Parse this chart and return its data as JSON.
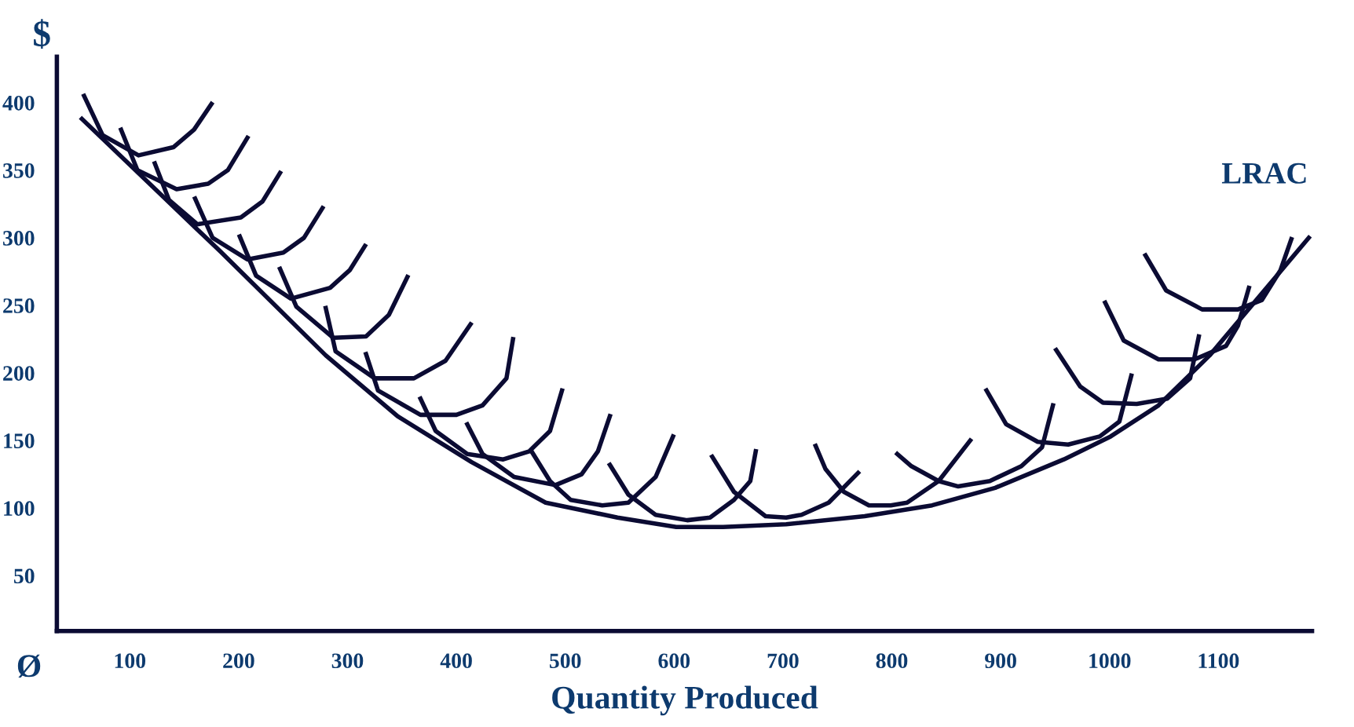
{
  "chart_data": {
    "type": "line",
    "xlabel": "Quantity Produced",
    "ylabel": "$",
    "xlim": [
      33,
      1186
    ],
    "ylim": [
      9,
      434
    ],
    "xticks": [
      100,
      200,
      300,
      400,
      500,
      600,
      700,
      800,
      900,
      1000,
      1100
    ],
    "yticks": [
      50,
      100,
      150,
      200,
      250,
      300,
      350,
      400
    ],
    "grid": false,
    "legend": false,
    "marker": "none",
    "line_style": "solid",
    "annotations": [
      "Ø"
    ],
    "series": [
      {
        "name": "LRAC",
        "color": "#0b0b33",
        "x": [
          56,
          183,
          280,
          346,
          414,
          482,
          548,
          602,
          645,
          703,
          775,
          837,
          895,
          958,
          1001,
          1045,
          1092,
          1183
        ],
        "values": [
          388,
          290,
          213,
          168,
          134,
          104,
          93,
          86,
          86,
          88,
          94,
          102,
          115,
          136,
          153,
          176,
          213,
          300
        ]
      },
      {
        "color": "#0b0b33",
        "x": [
          58,
          75,
          108,
          140,
          159,
          175
        ],
        "values": [
          405,
          376,
          361,
          367,
          380,
          399
        ]
      },
      {
        "color": "#0b0b33",
        "x": [
          92,
          107,
          143,
          172,
          190,
          208
        ],
        "values": [
          380,
          350,
          336,
          340,
          350,
          374
        ]
      },
      {
        "color": "#0b0b33",
        "x": [
          123,
          136,
          162,
          202,
          222,
          238
        ],
        "values": [
          355,
          328,
          310,
          315,
          327,
          348
        ]
      },
      {
        "color": "#0b0b33",
        "x": [
          160,
          176,
          208,
          241,
          260,
          277
        ],
        "values": [
          329,
          300,
          284,
          289,
          300,
          322
        ]
      },
      {
        "color": "#0b0b33",
        "x": [
          201,
          216,
          248,
          284,
          302,
          316
        ],
        "values": [
          301,
          272,
          255,
          263,
          276,
          294
        ]
      },
      {
        "color": "#0b0b33",
        "x": [
          238,
          253,
          287,
          317,
          338,
          355
        ],
        "values": [
          277,
          249,
          226,
          227,
          243,
          271
        ]
      },
      {
        "color": "#0b0b33",
        "x": [
          280,
          289,
          325,
          361,
          390,
          413
        ],
        "values": [
          248,
          216,
          196,
          196,
          209,
          236
        ]
      },
      {
        "color": "#0b0b33",
        "x": [
          317,
          328,
          367,
          400,
          424,
          446,
          452
        ],
        "values": [
          214,
          187,
          169,
          169,
          176,
          196,
          225
        ]
      },
      {
        "color": "#0b0b33",
        "x": [
          367,
          381,
          410,
          443,
          467,
          486,
          497
        ],
        "values": [
          181,
          157,
          140,
          136,
          142,
          157,
          187
        ]
      },
      {
        "color": "#0b0b33",
        "x": [
          410,
          424,
          453,
          491,
          515,
          530,
          541
        ],
        "values": [
          162,
          140,
          123,
          117,
          125,
          142,
          168
        ]
      },
      {
        "color": "#0b0b33",
        "x": [
          469,
          486,
          505,
          534,
          558,
          583,
          599
        ],
        "values": [
          142,
          120,
          106,
          102,
          104,
          123,
          153
        ]
      },
      {
        "color": "#0b0b33",
        "x": [
          541,
          558,
          583,
          612,
          633,
          655,
          670,
          675
        ],
        "values": [
          132,
          110,
          95,
          91,
          93,
          106,
          120,
          142
        ]
      },
      {
        "color": "#0b0b33",
        "x": [
          635,
          655,
          684,
          703,
          717,
          742,
          769
        ],
        "values": [
          138,
          112,
          94,
          93,
          95,
          104,
          126
        ]
      },
      {
        "color": "#0b0b33",
        "x": [
          730,
          739,
          756,
          779,
          799,
          814,
          843,
          872
        ],
        "values": [
          146,
          129,
          112,
          102,
          102,
          104,
          120,
          150
        ]
      },
      {
        "color": "#0b0b33",
        "x": [
          805,
          818,
          843,
          861,
          890,
          919,
          938,
          948
        ],
        "values": [
          140,
          131,
          120,
          116,
          120,
          131,
          145,
          176
        ]
      },
      {
        "color": "#0b0b33",
        "x": [
          887,
          905,
          934,
          962,
          991,
          1009,
          1020
        ],
        "values": [
          187,
          162,
          149,
          147,
          153,
          164,
          198
        ]
      },
      {
        "color": "#0b0b33",
        "x": [
          951,
          973,
          994,
          1025,
          1053,
          1074,
          1082
        ],
        "values": [
          217,
          190,
          178,
          177,
          181,
          196,
          227
        ]
      },
      {
        "color": "#0b0b33",
        "x": [
          996,
          1013,
          1045,
          1078,
          1107,
          1118,
          1128
        ],
        "values": [
          252,
          224,
          210,
          210,
          220,
          235,
          263
        ]
      },
      {
        "color": "#0b0b33",
        "x": [
          1033,
          1052,
          1085,
          1118,
          1140,
          1157,
          1167
        ],
        "values": [
          287,
          261,
          247,
          247,
          254,
          276,
          299
        ]
      }
    ]
  }
}
